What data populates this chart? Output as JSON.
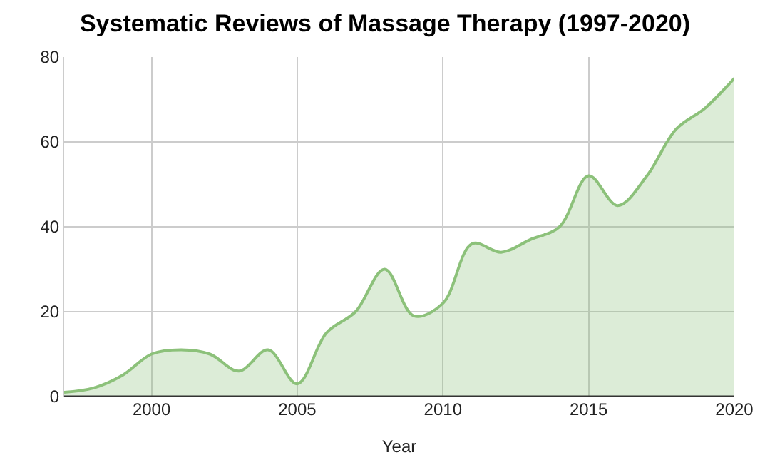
{
  "chart_data": {
    "type": "area",
    "title": "Systematic Reviews of Massage Therapy (1997-2020)",
    "xlabel": "Year",
    "x": [
      1997,
      1998,
      1999,
      2000,
      2001,
      2002,
      2003,
      2004,
      2005,
      2006,
      2007,
      2008,
      2009,
      2010,
      2011,
      2012,
      2013,
      2014,
      2015,
      2016,
      2017,
      2018,
      2019,
      2020
    ],
    "series": [
      {
        "color": "#8cc17a",
        "values": [
          1,
          2,
          5,
          10,
          11,
          10,
          6,
          11,
          3,
          15,
          20,
          30,
          19,
          22,
          36,
          34,
          37,
          40,
          52,
          45,
          52,
          63,
          68,
          75
        ]
      }
    ],
    "xlim": [
      1997,
      2020
    ],
    "xticks": [
      2000,
      2005,
      2010,
      2015,
      2020
    ],
    "ylim": [
      0,
      80
    ],
    "yticks": [
      0,
      20,
      40,
      60,
      80
    ],
    "grid": true,
    "legend": false
  }
}
